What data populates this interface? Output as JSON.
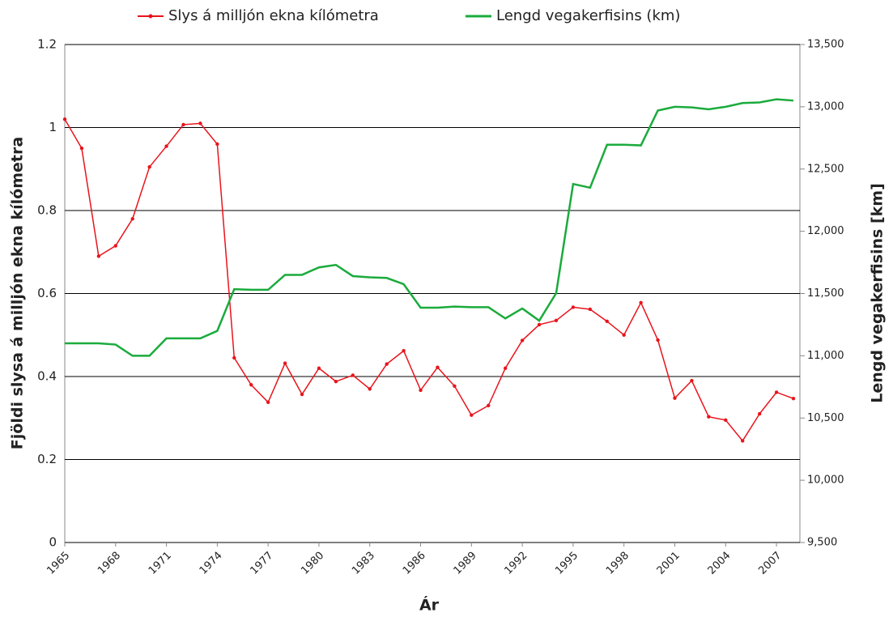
{
  "chart_data": {
    "type": "line",
    "x_label": "Ár",
    "y_label": "Fjöldi slysa á milljón ekna kílómetra",
    "y2_label": "Lengd vegakerfisins [km]",
    "x": [
      1965,
      1966,
      1967,
      1968,
      1969,
      1970,
      1971,
      1972,
      1973,
      1974,
      1975,
      1976,
      1977,
      1978,
      1979,
      1980,
      1981,
      1982,
      1983,
      1984,
      1985,
      1986,
      1987,
      1988,
      1989,
      1990,
      1991,
      1992,
      1993,
      1994,
      1995,
      1996,
      1997,
      1998,
      1999,
      2000,
      2001,
      2002,
      2003,
      2004,
      2005,
      2006,
      2007,
      2008
    ],
    "series": [
      {
        "name": "Slys á milljón ekna kílómetra",
        "color": "#e8141b",
        "markers": true,
        "values": [
          1.02,
          0.95,
          0.69,
          0.715,
          0.78,
          0.905,
          0.955,
          1.007,
          1.01,
          0.96,
          0.445,
          0.38,
          0.338,
          0.432,
          0.357,
          0.42,
          0.388,
          0.403,
          0.37,
          0.43,
          0.462,
          0.367,
          0.422,
          0.377,
          0.307,
          0.33,
          0.42,
          0.487,
          0.525,
          0.535,
          0.567,
          0.562,
          0.533,
          0.5,
          0.578,
          0.488,
          0.348,
          0.39,
          0.303,
          0.295,
          0.245,
          0.31,
          0.362,
          0.347
        ]
      },
      {
        "name": "Lengd vegakerfisins (km)",
        "color": "#1aab3c",
        "markers": false,
        "axis": "y2",
        "values": [
          11100,
          11100,
          11100,
          11090,
          11000,
          11000,
          11140,
          11140,
          11140,
          11200,
          11535,
          11530,
          11530,
          11650,
          11650,
          11710,
          11730,
          11640,
          11630,
          11625,
          11575,
          11386,
          11386,
          11395,
          11390,
          11390,
          11300,
          11380,
          11282,
          11503,
          12380,
          12350,
          12695,
          12695,
          12690,
          12970,
          13000,
          12995,
          12980,
          13000,
          13030,
          13035,
          13060,
          13050
        ]
      }
    ],
    "xlim": [
      1965,
      2008
    ],
    "xticks": [
      1965,
      1968,
      1971,
      1974,
      1977,
      1980,
      1983,
      1986,
      1989,
      1992,
      1995,
      1998,
      2001,
      2004,
      2007
    ],
    "ylim": [
      0,
      1.2
    ],
    "yticks": [
      0,
      0.2,
      0.4,
      0.6,
      0.8,
      1,
      1.2
    ],
    "y2lim": [
      9500,
      13500
    ],
    "y2ticks": [
      {
        "value": 9500,
        "label": "9,500"
      },
      {
        "value": 10000,
        "label": "10,000"
      },
      {
        "value": 10500,
        "label": "10,500"
      },
      {
        "value": 11000,
        "label": "11,000"
      },
      {
        "value": 11500,
        "label": "11,500"
      },
      {
        "value": 12000,
        "label": "12,000"
      },
      {
        "value": 12500,
        "label": "12,500"
      },
      {
        "value": 13000,
        "label": "13,000"
      },
      {
        "value": 13500,
        "label": "13,500"
      }
    ],
    "grid": true,
    "legend": "top"
  }
}
